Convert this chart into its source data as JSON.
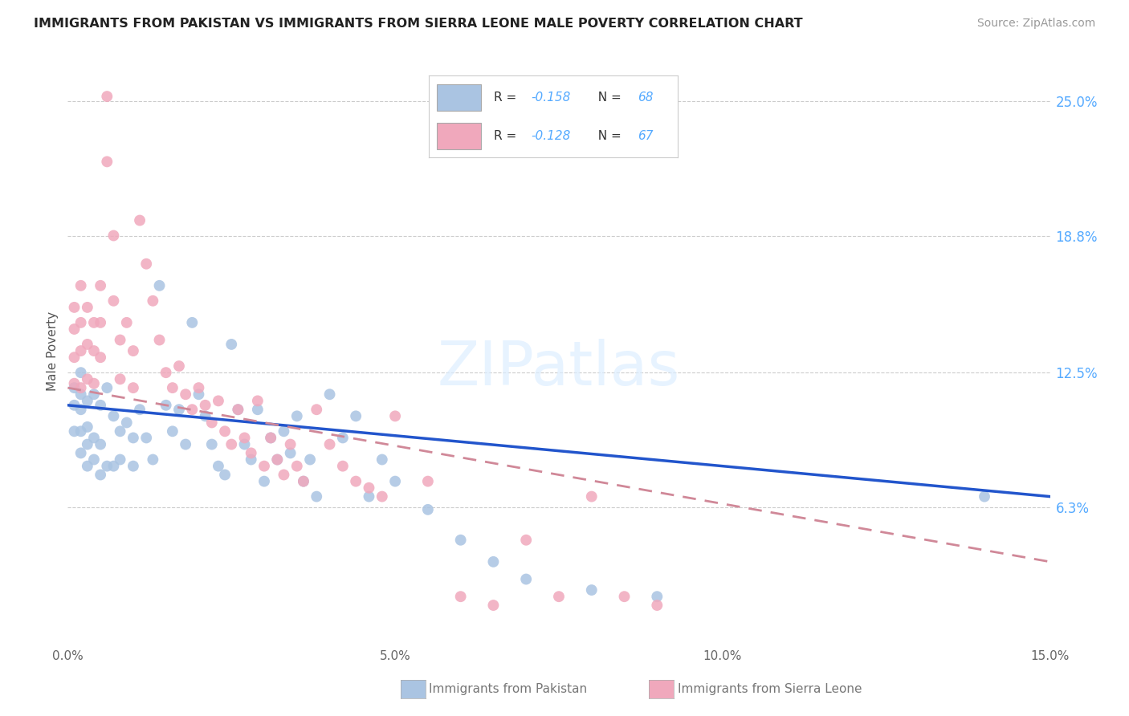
{
  "title": "IMMIGRANTS FROM PAKISTAN VS IMMIGRANTS FROM SIERRA LEONE MALE POVERTY CORRELATION CHART",
  "source": "Source: ZipAtlas.com",
  "ylabel": "Male Poverty",
  "ytick_labels": [
    "25.0%",
    "18.8%",
    "12.5%",
    "6.3%"
  ],
  "ytick_values": [
    0.25,
    0.188,
    0.125,
    0.063
  ],
  "xmin": 0.0,
  "xmax": 0.15,
  "ymin": 0.0,
  "ymax": 0.27,
  "color_pakistan": "#aac4e2",
  "color_sierra_leone": "#f0a8bc",
  "color_line_pakistan": "#2255cc",
  "color_line_sierra_leone": "#d08898",
  "label_pakistan": "Immigrants from Pakistan",
  "label_sierra_leone": "Immigrants from Sierra Leone",
  "pakistan_x": [
    0.001,
    0.001,
    0.001,
    0.002,
    0.002,
    0.002,
    0.002,
    0.002,
    0.003,
    0.003,
    0.003,
    0.003,
    0.004,
    0.004,
    0.004,
    0.005,
    0.005,
    0.005,
    0.006,
    0.006,
    0.007,
    0.007,
    0.008,
    0.008,
    0.009,
    0.01,
    0.01,
    0.011,
    0.012,
    0.013,
    0.014,
    0.015,
    0.016,
    0.017,
    0.018,
    0.019,
    0.02,
    0.021,
    0.022,
    0.023,
    0.024,
    0.025,
    0.026,
    0.027,
    0.028,
    0.029,
    0.03,
    0.031,
    0.032,
    0.033,
    0.034,
    0.035,
    0.036,
    0.037,
    0.038,
    0.04,
    0.042,
    0.044,
    0.046,
    0.048,
    0.05,
    0.055,
    0.06,
    0.065,
    0.07,
    0.08,
    0.09,
    0.14
  ],
  "pakistan_y": [
    0.118,
    0.11,
    0.098,
    0.125,
    0.115,
    0.108,
    0.098,
    0.088,
    0.112,
    0.1,
    0.092,
    0.082,
    0.115,
    0.095,
    0.085,
    0.11,
    0.092,
    0.078,
    0.118,
    0.082,
    0.105,
    0.082,
    0.098,
    0.085,
    0.102,
    0.095,
    0.082,
    0.108,
    0.095,
    0.085,
    0.165,
    0.11,
    0.098,
    0.108,
    0.092,
    0.148,
    0.115,
    0.105,
    0.092,
    0.082,
    0.078,
    0.138,
    0.108,
    0.092,
    0.085,
    0.108,
    0.075,
    0.095,
    0.085,
    0.098,
    0.088,
    0.105,
    0.075,
    0.085,
    0.068,
    0.115,
    0.095,
    0.105,
    0.068,
    0.085,
    0.075,
    0.062,
    0.048,
    0.038,
    0.03,
    0.025,
    0.022,
    0.068
  ],
  "sierra_leone_x": [
    0.001,
    0.001,
    0.001,
    0.001,
    0.002,
    0.002,
    0.002,
    0.002,
    0.003,
    0.003,
    0.003,
    0.004,
    0.004,
    0.004,
    0.005,
    0.005,
    0.005,
    0.006,
    0.006,
    0.007,
    0.007,
    0.008,
    0.008,
    0.009,
    0.01,
    0.01,
    0.011,
    0.012,
    0.013,
    0.014,
    0.015,
    0.016,
    0.017,
    0.018,
    0.019,
    0.02,
    0.021,
    0.022,
    0.023,
    0.024,
    0.025,
    0.026,
    0.027,
    0.028,
    0.029,
    0.03,
    0.031,
    0.032,
    0.033,
    0.034,
    0.035,
    0.036,
    0.038,
    0.04,
    0.042,
    0.044,
    0.046,
    0.048,
    0.05,
    0.055,
    0.06,
    0.065,
    0.07,
    0.075,
    0.08,
    0.085,
    0.09
  ],
  "sierra_leone_y": [
    0.155,
    0.145,
    0.132,
    0.12,
    0.165,
    0.148,
    0.135,
    0.118,
    0.155,
    0.138,
    0.122,
    0.148,
    0.135,
    0.12,
    0.165,
    0.148,
    0.132,
    0.252,
    0.222,
    0.188,
    0.158,
    0.14,
    0.122,
    0.148,
    0.135,
    0.118,
    0.195,
    0.175,
    0.158,
    0.14,
    0.125,
    0.118,
    0.128,
    0.115,
    0.108,
    0.118,
    0.11,
    0.102,
    0.112,
    0.098,
    0.092,
    0.108,
    0.095,
    0.088,
    0.112,
    0.082,
    0.095,
    0.085,
    0.078,
    0.092,
    0.082,
    0.075,
    0.108,
    0.092,
    0.082,
    0.075,
    0.072,
    0.068,
    0.105,
    0.075,
    0.022,
    0.018,
    0.048,
    0.022,
    0.068,
    0.022,
    0.018
  ]
}
